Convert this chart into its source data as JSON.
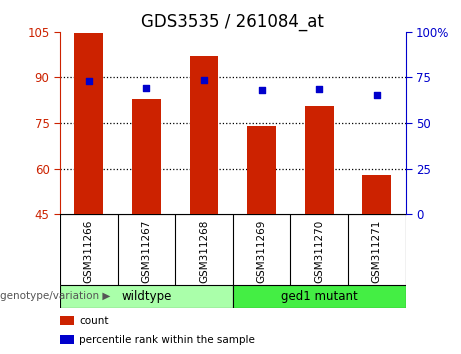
{
  "title": "GDS3535 / 261084_at",
  "categories": [
    "GSM311266",
    "GSM311267",
    "GSM311268",
    "GSM311269",
    "GSM311270",
    "GSM311271"
  ],
  "bar_values": [
    104.5,
    83.0,
    97.0,
    74.0,
    80.5,
    58.0
  ],
  "bar_baseline": 45,
  "bar_color": "#cc2200",
  "dot_values_left": [
    88.8,
    86.5,
    89.0,
    85.8,
    86.2,
    84.2
  ],
  "dot_color": "#0000cc",
  "left_ylim": [
    45,
    105
  ],
  "left_yticks": [
    45,
    60,
    75,
    90,
    105
  ],
  "right_ylim": [
    0,
    100
  ],
  "right_yticks": [
    0,
    25,
    50,
    75,
    100
  ],
  "right_yticklabels": [
    "0",
    "25",
    "50",
    "75",
    "100%"
  ],
  "left_tick_color": "#cc2200",
  "right_tick_color": "#0000cc",
  "groups": [
    {
      "label": "wildtype",
      "color": "#aaffaa"
    },
    {
      "label": "ged1 mutant",
      "color": "#44ee44"
    }
  ],
  "group_label": "genotype/variation",
  "legend_items": [
    {
      "label": "count",
      "color": "#cc2200"
    },
    {
      "label": "percentile rank within the sample",
      "color": "#0000cc"
    }
  ],
  "bar_width": 0.5,
  "background_color": "#ffffff",
  "plot_bg_color": "#ffffff",
  "label_area_bg": "#c8c8c8",
  "title_fontsize": 12,
  "tick_fontsize": 8.5,
  "cat_fontsize": 7.5
}
